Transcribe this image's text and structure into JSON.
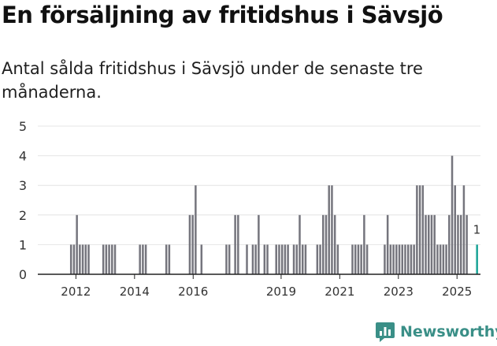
{
  "title": "En försäljning av fritidshus i Sävsjö",
  "subtitle": "Antal sålda fritidshus i Sävsjö under de senaste tre månaderna.",
  "brand": {
    "name": "Newsworthy",
    "logo_icon": "newsworthy-chart-icon",
    "color": "#3a8f87"
  },
  "colors": {
    "bars": "#75757d",
    "highlight": "#1aa397",
    "grid": "#e4e4e4",
    "axis": "#222222",
    "text": "#333333"
  },
  "chart_data": {
    "type": "bar",
    "title": "",
    "xlabel": "",
    "ylabel": "",
    "ylim": [
      0,
      5
    ],
    "yticks": [
      0,
      1,
      2,
      3,
      4,
      5
    ],
    "xlim": [
      2011.2,
      2026.3
    ],
    "xticks": [
      "2012",
      "2014",
      "2016",
      "2019",
      "2021",
      "2023",
      "2025"
    ],
    "grid": true,
    "bar_width_years": 0.0833,
    "bars": [
      {
        "x": 2012.3,
        "y": 1
      },
      {
        "x": 2012.4,
        "y": 1
      },
      {
        "x": 2012.5,
        "y": 2
      },
      {
        "x": 2012.6,
        "y": 1
      },
      {
        "x": 2012.7,
        "y": 1
      },
      {
        "x": 2012.8,
        "y": 1
      },
      {
        "x": 2012.9,
        "y": 1
      },
      {
        "x": 2013.4,
        "y": 1
      },
      {
        "x": 2013.5,
        "y": 1
      },
      {
        "x": 2013.6,
        "y": 1
      },
      {
        "x": 2013.7,
        "y": 1
      },
      {
        "x": 2013.8,
        "y": 1
      },
      {
        "x": 2014.65,
        "y": 1
      },
      {
        "x": 2014.75,
        "y": 1
      },
      {
        "x": 2014.85,
        "y": 1
      },
      {
        "x": 2015.55,
        "y": 1
      },
      {
        "x": 2015.65,
        "y": 1
      },
      {
        "x": 2016.35,
        "y": 2
      },
      {
        "x": 2016.45,
        "y": 2
      },
      {
        "x": 2016.55,
        "y": 3
      },
      {
        "x": 2016.75,
        "y": 1
      },
      {
        "x": 2017.6,
        "y": 1
      },
      {
        "x": 2017.7,
        "y": 1
      },
      {
        "x": 2017.9,
        "y": 2
      },
      {
        "x": 2018.0,
        "y": 2
      },
      {
        "x": 2018.3,
        "y": 1
      },
      {
        "x": 2018.5,
        "y": 1
      },
      {
        "x": 2018.6,
        "y": 1
      },
      {
        "x": 2018.7,
        "y": 2
      },
      {
        "x": 2018.9,
        "y": 1
      },
      {
        "x": 2019.0,
        "y": 1
      },
      {
        "x": 2019.3,
        "y": 1
      },
      {
        "x": 2019.4,
        "y": 1
      },
      {
        "x": 2019.5,
        "y": 1
      },
      {
        "x": 2019.6,
        "y": 1
      },
      {
        "x": 2019.7,
        "y": 1
      },
      {
        "x": 2019.9,
        "y": 1
      },
      {
        "x": 2020.0,
        "y": 1
      },
      {
        "x": 2020.1,
        "y": 2
      },
      {
        "x": 2020.2,
        "y": 1
      },
      {
        "x": 2020.3,
        "y": 1
      },
      {
        "x": 2020.7,
        "y": 1
      },
      {
        "x": 2020.8,
        "y": 1
      },
      {
        "x": 2020.9,
        "y": 2
      },
      {
        "x": 2021.0,
        "y": 2
      },
      {
        "x": 2021.1,
        "y": 3
      },
      {
        "x": 2021.2,
        "y": 3
      },
      {
        "x": 2021.3,
        "y": 2
      },
      {
        "x": 2021.4,
        "y": 1
      },
      {
        "x": 2021.9,
        "y": 1
      },
      {
        "x": 2022.0,
        "y": 1
      },
      {
        "x": 2022.1,
        "y": 1
      },
      {
        "x": 2022.2,
        "y": 1
      },
      {
        "x": 2022.3,
        "y": 2
      },
      {
        "x": 2022.4,
        "y": 1
      },
      {
        "x": 2023.0,
        "y": 1
      },
      {
        "x": 2023.1,
        "y": 2
      },
      {
        "x": 2023.2,
        "y": 1
      },
      {
        "x": 2023.3,
        "y": 1
      },
      {
        "x": 2023.4,
        "y": 1
      },
      {
        "x": 2023.5,
        "y": 1
      },
      {
        "x": 2023.6,
        "y": 1
      },
      {
        "x": 2023.7,
        "y": 1
      },
      {
        "x": 2023.8,
        "y": 1
      },
      {
        "x": 2023.9,
        "y": 1
      },
      {
        "x": 2024.0,
        "y": 1
      },
      {
        "x": 2024.1,
        "y": 3
      },
      {
        "x": 2024.2,
        "y": 3
      },
      {
        "x": 2024.3,
        "y": 3
      },
      {
        "x": 2024.4,
        "y": 2
      },
      {
        "x": 2024.5,
        "y": 2
      },
      {
        "x": 2024.6,
        "y": 2
      },
      {
        "x": 2024.7,
        "y": 2
      },
      {
        "x": 2024.8,
        "y": 1
      },
      {
        "x": 2024.9,
        "y": 1
      },
      {
        "x": 2025.0,
        "y": 1
      },
      {
        "x": 2025.1,
        "y": 1
      },
      {
        "x": 2025.2,
        "y": 2
      },
      {
        "x": 2025.3,
        "y": 4
      },
      {
        "x": 2025.4,
        "y": 3
      },
      {
        "x": 2025.5,
        "y": 2
      },
      {
        "x": 2025.6,
        "y": 2
      },
      {
        "x": 2025.7,
        "y": 3
      },
      {
        "x": 2025.8,
        "y": 2
      }
    ],
    "highlight": {
      "x": 2026.15,
      "y": 1,
      "label": "1"
    }
  }
}
